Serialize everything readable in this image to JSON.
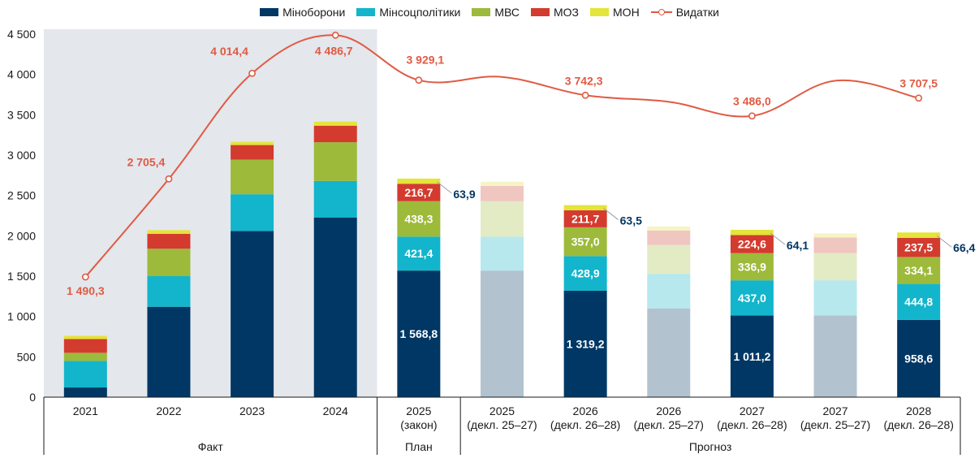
{
  "chart_data": {
    "type": "bar",
    "series": [
      {
        "name": "Міноборони",
        "color": "#003764",
        "values": [
          120,
          1120,
          2060,
          2225,
          1568.8,
          1568.8,
          1319.2,
          1100,
          1011.2,
          1011.2,
          958.6
        ]
      },
      {
        "name": "Мінсоцполітики",
        "color": "#12b5cb",
        "values": [
          330,
          380,
          455,
          455,
          421.4,
          421.4,
          428.9,
          428.9,
          437.0,
          437.0,
          444.8
        ]
      },
      {
        "name": "МВС",
        "color": "#9dba3b",
        "values": [
          100,
          340,
          430,
          480,
          438.3,
          438.3,
          357.0,
          357.0,
          336.9,
          336.9,
          334.1
        ]
      },
      {
        "name": "МОЗ",
        "color": "#d33b2f",
        "values": [
          170,
          185,
          180,
          205,
          216.7,
          190,
          211.7,
          180,
          224.6,
          195,
          237.5
        ]
      },
      {
        "name": "МОН",
        "color": "#e4e43a",
        "values": [
          40,
          45,
          40,
          50,
          63.9,
          50,
          63.5,
          50,
          64.1,
          50,
          66.4
        ]
      }
    ],
    "line": {
      "name": "Видатки",
      "color": "#e05a43",
      "values": [
        1490.3,
        2705.4,
        4014.4,
        4486.7,
        3929.1,
        3969.5,
        3742.3,
        3661.2,
        3486.0,
        3922.6,
        3707.5
      ],
      "labels": [
        "1 490,3",
        "2 705,4",
        "4 014,4",
        "4 486,7",
        "3 929,1",
        "",
        "3 742,3",
        "",
        "3 486,0",
        "",
        "3 707,5"
      ]
    },
    "faded": [
      false,
      false,
      false,
      false,
      false,
      true,
      false,
      true,
      false,
      true,
      false
    ],
    "categories": [
      {
        "year": "2021",
        "sub": ""
      },
      {
        "year": "2022",
        "sub": ""
      },
      {
        "year": "2023",
        "sub": ""
      },
      {
        "year": "2024",
        "sub": ""
      },
      {
        "year": "2025",
        "sub": "(закон)"
      },
      {
        "year": "2025",
        "sub": "(декл. 25–27)"
      },
      {
        "year": "2026",
        "sub": "(декл. 26–28)"
      },
      {
        "year": "2026",
        "sub": "(декл. 25–27)"
      },
      {
        "year": "2027",
        "sub": "(декл. 26–28)"
      },
      {
        "year": "2027",
        "sub": "(декл. 25–27)"
      },
      {
        "year": "2028",
        "sub": "(декл. 26–28)"
      }
    ],
    "bar_labels": [
      null,
      null,
      null,
      null,
      {
        "Міноборони": "1 568,8",
        "Мінсоцполітики": "421,4",
        "МВС": "438,3",
        "МОЗ": "216,7",
        "МОН": "63,9"
      },
      null,
      {
        "Міноборони": "1 319,2",
        "Мінсоцполітики": "428,9",
        "МВС": "357,0",
        "МОЗ": "211,7",
        "МОН": "63,5"
      },
      null,
      {
        "Міноборони": "1 011,2",
        "Мінсоцполітики": "437,0",
        "МВС": "336,9",
        "МОЗ": "224,6",
        "МОН": "64,1"
      },
      null,
      {
        "Міноборони": "958,6",
        "Мінсоцполітики": "444,8",
        "МВС": "334,1",
        "МОЗ": "237,5",
        "МОН": "66,4"
      }
    ],
    "yticks": [
      {
        "value": 0,
        "label": "0"
      },
      {
        "value": 500,
        "label": "500"
      },
      {
        "value": 1000,
        "label": "1 000"
      },
      {
        "value": 1500,
        "label": "1 500"
      },
      {
        "value": 2000,
        "label": "2 000"
      },
      {
        "value": 2500,
        "label": "2 500"
      },
      {
        "value": 3000,
        "label": "3 000"
      },
      {
        "value": 3500,
        "label": "3 500"
      },
      {
        "value": 4000,
        "label": "4 000"
      },
      {
        "value": 4500,
        "label": "4 500"
      }
    ],
    "ylim": [
      0,
      4500
    ],
    "groups": [
      {
        "label": "Факт",
        "from": 0,
        "to": 3
      },
      {
        "label": "План",
        "from": 4,
        "to": 4
      },
      {
        "label": "Прогноз",
        "from": 5,
        "to": 10
      }
    ],
    "shaded_range": [
      0,
      3
    ],
    "grid": false,
    "legend_position": "top"
  }
}
